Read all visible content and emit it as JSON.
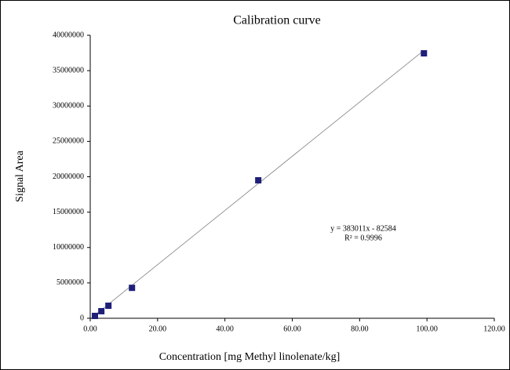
{
  "chart_data": {
    "type": "scatter",
    "title": "Calibration curve",
    "x_label": "Concentration [mg Methyl linolenate/kg]",
    "y_label": "Signal Area",
    "x": [
      1.4,
      3.3,
      5.4,
      12.4,
      49.9,
      99.1
    ],
    "series": [
      {
        "name": "Signal Area",
        "color": "#1f1f78",
        "values": [
          330000,
          1000000,
          1770000,
          4300000,
          19500000,
          37450000
        ]
      }
    ],
    "xlim": [
      0,
      120
    ],
    "xticks": [
      {
        "value": 0,
        "label": "0.00"
      },
      {
        "value": 20,
        "label": "20.00"
      },
      {
        "value": 40,
        "label": "40.00"
      },
      {
        "value": 60,
        "label": "60.00"
      },
      {
        "value": 80,
        "label": "80.00"
      },
      {
        "value": 100,
        "label": "100.00"
      },
      {
        "value": 120,
        "label": "120.00"
      }
    ],
    "ylim": [
      0,
      40000000
    ],
    "yticks": [
      0,
      5000000,
      10000000,
      15000000,
      20000000,
      25000000,
      30000000,
      35000000,
      40000000
    ],
    "trendline": {
      "slope": 383011,
      "intercept": -82584,
      "color": "#808080",
      "equation_label": "y = 383011x - 82584",
      "r2_label": "R² = 0.9996"
    },
    "grid": false
  }
}
